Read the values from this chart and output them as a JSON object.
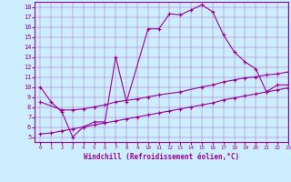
{
  "xlabel": "Windchill (Refroidissement éolien,°C)",
  "bg_color": "#cceeff",
  "line_color": "#990099",
  "xlim": [
    -0.5,
    23
  ],
  "ylim": [
    4.5,
    18.5
  ],
  "yticks": [
    5,
    6,
    7,
    8,
    9,
    10,
    11,
    12,
    13,
    14,
    15,
    16,
    17,
    18
  ],
  "xticks": [
    0,
    1,
    2,
    3,
    4,
    5,
    6,
    7,
    8,
    9,
    10,
    11,
    12,
    13,
    14,
    15,
    16,
    17,
    18,
    19,
    20,
    21,
    22,
    23
  ],
  "line1_x": [
    0,
    1,
    2,
    3,
    4,
    5,
    6,
    7,
    8,
    10,
    11,
    12,
    13,
    14,
    15,
    16,
    17,
    18,
    19,
    20,
    21,
    22,
    23
  ],
  "line1_y": [
    10.0,
    8.5,
    7.5,
    5.0,
    6.0,
    6.5,
    6.5,
    13.0,
    8.5,
    15.8,
    15.8,
    17.3,
    17.2,
    17.7,
    18.2,
    17.5,
    15.2,
    13.5,
    12.5,
    11.8,
    9.5,
    10.2,
    10.2
  ],
  "line2_x": [
    0,
    2,
    3,
    4,
    5,
    6,
    7,
    9,
    10,
    11,
    13,
    15,
    16,
    17,
    18,
    19,
    20,
    21,
    22,
    23
  ],
  "line2_y": [
    8.5,
    7.7,
    7.7,
    7.8,
    8.0,
    8.2,
    8.5,
    8.8,
    9.0,
    9.2,
    9.5,
    10.0,
    10.2,
    10.5,
    10.7,
    10.9,
    11.0,
    11.2,
    11.3,
    11.5
  ],
  "line3_x": [
    0,
    1,
    2,
    3,
    4,
    5,
    6,
    7,
    8,
    9,
    10,
    11,
    12,
    13,
    14,
    15,
    16,
    17,
    18,
    19,
    20,
    21,
    22,
    23
  ],
  "line3_y": [
    5.3,
    5.4,
    5.6,
    5.8,
    6.0,
    6.2,
    6.4,
    6.6,
    6.8,
    7.0,
    7.2,
    7.4,
    7.6,
    7.8,
    8.0,
    8.2,
    8.4,
    8.7,
    8.9,
    9.1,
    9.3,
    9.5,
    9.7,
    9.9
  ]
}
